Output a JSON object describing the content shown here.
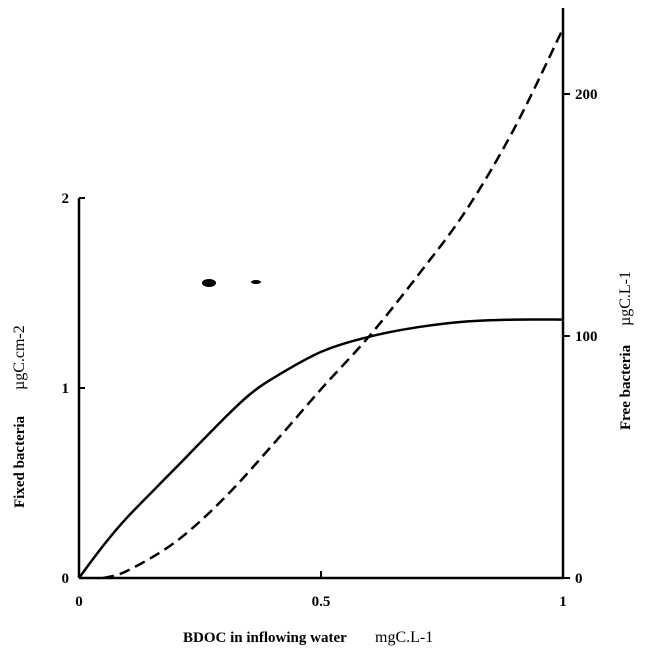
{
  "chart_data": {
    "type": "line",
    "title": "",
    "x": {
      "label": "BDOC in inflowing water",
      "unit": "mgC.L-1",
      "range": [
        0,
        1
      ],
      "ticks": [
        0,
        0.5,
        1
      ],
      "tick_labels": [
        "0",
        "0.5",
        "1"
      ]
    },
    "y_left": {
      "label": "Fixed bacteria",
      "unit": "µgC.cm-2",
      "range": [
        0,
        2
      ],
      "ticks": [
        0,
        1,
        2
      ],
      "tick_labels": [
        "0",
        "1",
        "2"
      ]
    },
    "y_right": {
      "label": "Free bacteria",
      "unit": "µgC.L-1",
      "range": [
        0,
        235
      ],
      "ticks": [
        0,
        100,
        200
      ],
      "tick_labels": [
        "0",
        "100",
        "200"
      ]
    },
    "legend": {
      "placement": "upper-left, no text",
      "markers": [
        {
          "style": "solid",
          "color": "#000000"
        },
        {
          "style": "dashed",
          "color": "#000000"
        }
      ]
    },
    "series": [
      {
        "axis": "left",
        "style": "solid",
        "color": "#000000",
        "x": [
          0,
          0.05,
          0.1,
          0.2,
          0.3,
          0.35,
          0.4,
          0.5,
          0.6,
          0.7,
          0.8,
          0.9,
          1.0
        ],
        "y": [
          0,
          0.17,
          0.32,
          0.58,
          0.84,
          0.96,
          1.05,
          1.19,
          1.27,
          1.32,
          1.35,
          1.36,
          1.36
        ]
      },
      {
        "axis": "right",
        "style": "dashed",
        "color": "#000000",
        "x": [
          0.05,
          0.1,
          0.2,
          0.3,
          0.4,
          0.5,
          0.6,
          0.7,
          0.8,
          0.9,
          1.0
        ],
        "y": [
          0,
          3,
          15,
          33,
          55,
          78,
          100,
          125,
          152,
          186,
          227
        ]
      }
    ]
  }
}
